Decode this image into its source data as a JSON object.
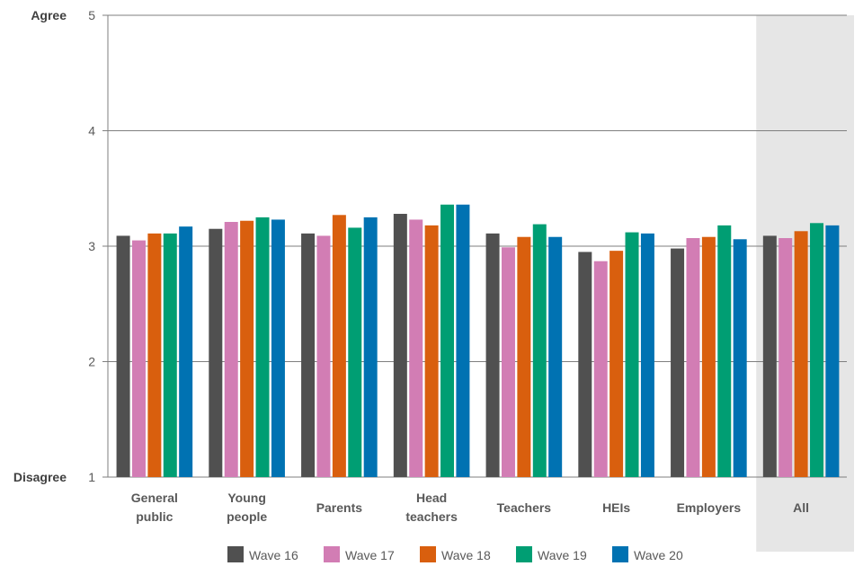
{
  "chart_data": {
    "type": "bar",
    "title": "",
    "xlabel": "",
    "ylabel": "",
    "ylim": [
      1,
      5
    ],
    "yticks": [
      1,
      2,
      3,
      4,
      5
    ],
    "ytick_labels": [
      "1",
      "2",
      "3",
      "4",
      "5"
    ],
    "y_end_labels": {
      "top": "Agree",
      "bottom": "Disagree"
    },
    "categories": [
      [
        "General",
        "public"
      ],
      [
        "Young",
        "people"
      ],
      [
        "Parents"
      ],
      [
        "Head",
        "teachers"
      ],
      [
        "Teachers"
      ],
      [
        "HEIs"
      ],
      [
        "Employers"
      ],
      [
        "All"
      ]
    ],
    "highlight_category": 7,
    "legend_position": "bottom",
    "series": [
      {
        "name": "Wave 16",
        "color": "#505050",
        "values": [
          3.09,
          3.15,
          3.11,
          3.28,
          3.11,
          2.95,
          2.98,
          3.09
        ]
      },
      {
        "name": "Wave 17",
        "color": "#D27DB4",
        "values": [
          3.05,
          3.21,
          3.09,
          3.23,
          2.99,
          2.87,
          3.07,
          3.07
        ]
      },
      {
        "name": "Wave 18",
        "color": "#D95F0E",
        "values": [
          3.11,
          3.22,
          3.27,
          3.18,
          3.08,
          2.96,
          3.08,
          3.13
        ]
      },
      {
        "name": "Wave 19",
        "color": "#009E73",
        "values": [
          3.11,
          3.25,
          3.16,
          3.36,
          3.19,
          3.12,
          3.18,
          3.2
        ]
      },
      {
        "name": "Wave 20",
        "color": "#0072B2",
        "values": [
          3.17,
          3.23,
          3.25,
          3.36,
          3.08,
          3.11,
          3.06,
          3.18
        ]
      }
    ]
  }
}
